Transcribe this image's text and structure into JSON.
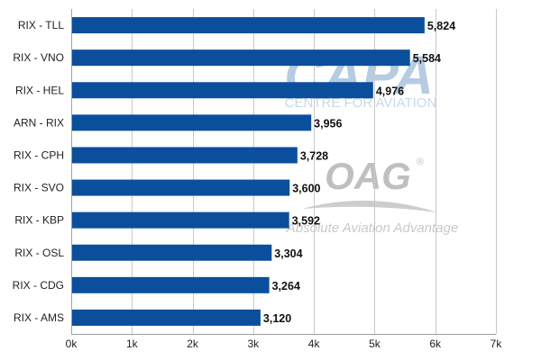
{
  "colors": {
    "bar": "#0b4f9c",
    "watermark_capa": "#a9c4dd",
    "watermark_oag": "#b9b9b9",
    "grid": "#c8c8c8"
  },
  "watermarks": {
    "capa": {
      "logo": "CAPA",
      "subtitle": "CENTRE FOR AVIATION"
    },
    "oag": {
      "logo": "OAG",
      "mark": "®",
      "tagline": "Absolute Aviation Advantage"
    }
  },
  "chart_data": {
    "type": "bar",
    "orientation": "horizontal",
    "title": "",
    "xlabel": "",
    "ylabel": "",
    "categories": [
      "RIX - TLL",
      "RIX - VNO",
      "RIX - HEL",
      "ARN - RIX",
      "RIX - CPH",
      "RIX - SVO",
      "RIX - KBP",
      "RIX - OSL",
      "RIX - CDG",
      "RIX - AMS"
    ],
    "values": [
      5824,
      5584,
      4976,
      3956,
      3728,
      3600,
      3592,
      3304,
      3264,
      3120
    ],
    "value_labels": [
      "5,824",
      "5,584",
      "4,976",
      "3,956",
      "3,728",
      "3,600",
      "3,592",
      "3,304",
      "3,264",
      "3,120"
    ],
    "xlim": [
      0,
      7000
    ],
    "x_ticks": [
      0,
      1000,
      2000,
      3000,
      4000,
      5000,
      6000,
      7000
    ],
    "x_tick_labels": [
      "0k",
      "1k",
      "2k",
      "3k",
      "4k",
      "5k",
      "6k",
      "7k"
    ],
    "grid": true,
    "legend": "none"
  }
}
